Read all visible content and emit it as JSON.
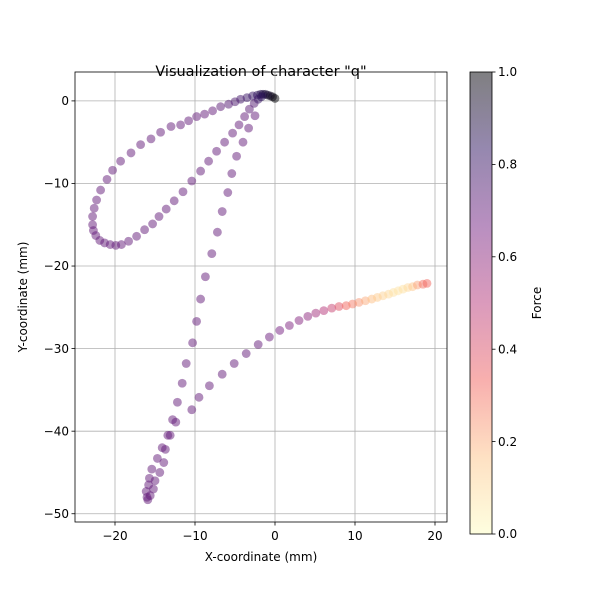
{
  "chart_data": {
    "type": "scatter",
    "title": "Visualization of character \"q\"",
    "xlabel": "X-coordinate (mm)",
    "ylabel": "Y-coordinate (mm)",
    "xlim": [
      -25,
      21.5
    ],
    "ylim": [
      -51,
      3.5
    ],
    "x_ticks": [
      -20,
      -10,
      0,
      10,
      20
    ],
    "y_ticks": [
      0,
      -10,
      -20,
      -30,
      -40,
      -50
    ],
    "x_tick_labels": [
      "−20",
      "−10",
      "0",
      "10",
      "20"
    ],
    "y_tick_labels": [
      "0",
      "−10",
      "−20",
      "−30",
      "−40",
      "−50"
    ],
    "grid": true,
    "marker_alpha": 0.5,
    "colormap": "magma_r",
    "colorbar": {
      "label": "Force",
      "range": [
        0,
        1
      ],
      "ticks": [
        0.0,
        0.2,
        0.4,
        0.6,
        0.8,
        1.0
      ],
      "tick_labels": [
        "0.0",
        "0.2",
        "0.4",
        "0.6",
        "0.8",
        "1.0"
      ],
      "colors": [
        "#fcfdbf",
        "#fec287",
        "#f1605d",
        "#b63679",
        "#721f81",
        "#2c115f",
        "#000004"
      ]
    },
    "points": [
      [
        0.0,
        0.3,
        1.0
      ],
      [
        -0.3,
        0.5,
        0.98
      ],
      [
        -0.6,
        0.6,
        0.96
      ],
      [
        -0.9,
        0.7,
        0.94
      ],
      [
        -1.2,
        0.8,
        0.92
      ],
      [
        -1.5,
        0.8,
        0.9
      ],
      [
        -1.8,
        0.8,
        0.88
      ],
      [
        -2.2,
        0.7,
        0.85
      ],
      [
        -2.8,
        0.6,
        0.82
      ],
      [
        -3.5,
        0.4,
        0.8
      ],
      [
        -4.3,
        0.2,
        0.78
      ],
      [
        -5.0,
        -0.1,
        0.76
      ],
      [
        -5.8,
        -0.4,
        0.74
      ],
      [
        -6.8,
        -0.7,
        0.72
      ],
      [
        -7.8,
        -1.2,
        0.7
      ],
      [
        -8.8,
        -1.6,
        0.7
      ],
      [
        -9.8,
        -1.9,
        0.7
      ],
      [
        -10.8,
        -2.4,
        0.7
      ],
      [
        -11.8,
        -2.9,
        0.7
      ],
      [
        -13.0,
        -3.1,
        0.7
      ],
      [
        -14.3,
        -3.8,
        0.7
      ],
      [
        -15.5,
        -4.6,
        0.7
      ],
      [
        -16.8,
        -5.3,
        0.7
      ],
      [
        -18.0,
        -6.3,
        0.7
      ],
      [
        -19.3,
        -7.3,
        0.7
      ],
      [
        -20.3,
        -8.4,
        0.7
      ],
      [
        -21.0,
        -9.5,
        0.7
      ],
      [
        -21.8,
        -10.8,
        0.7
      ],
      [
        -22.3,
        -12.0,
        0.7
      ],
      [
        -22.6,
        -13.0,
        0.7
      ],
      [
        -22.8,
        -14.0,
        0.7
      ],
      [
        -22.8,
        -15.0,
        0.7
      ],
      [
        -22.7,
        -15.7,
        0.7
      ],
      [
        -22.4,
        -16.3,
        0.7
      ],
      [
        -21.9,
        -16.9,
        0.7
      ],
      [
        -21.3,
        -17.2,
        0.7
      ],
      [
        -20.6,
        -17.4,
        0.7
      ],
      [
        -19.9,
        -17.5,
        0.7
      ],
      [
        -19.2,
        -17.4,
        0.7
      ],
      [
        -18.3,
        -17.0,
        0.7
      ],
      [
        -17.3,
        -16.4,
        0.7
      ],
      [
        -16.3,
        -15.6,
        0.7
      ],
      [
        -15.3,
        -14.9,
        0.7
      ],
      [
        -14.5,
        -14.0,
        0.7
      ],
      [
        -13.6,
        -13.1,
        0.7
      ],
      [
        -12.6,
        -12.1,
        0.7
      ],
      [
        -11.5,
        -11.0,
        0.7
      ],
      [
        -10.4,
        -9.7,
        0.7
      ],
      [
        -9.3,
        -8.5,
        0.7
      ],
      [
        -8.3,
        -7.3,
        0.7
      ],
      [
        -7.3,
        -6.1,
        0.7
      ],
      [
        -6.3,
        -5.0,
        0.7
      ],
      [
        -5.3,
        -3.9,
        0.7
      ],
      [
        -4.5,
        -2.9,
        0.7
      ],
      [
        -3.8,
        -1.9,
        0.7
      ],
      [
        -3.2,
        -1.0,
        0.72
      ],
      [
        -2.6,
        -0.3,
        0.74
      ],
      [
        -2.1,
        0.2,
        0.8
      ],
      [
        -1.7,
        0.5,
        0.85
      ],
      [
        -2.5,
        -1.8,
        0.7
      ],
      [
        -3.3,
        -3.3,
        0.7
      ],
      [
        -4.0,
        -5.0,
        0.7
      ],
      [
        -4.8,
        -6.7,
        0.7
      ],
      [
        -5.4,
        -8.8,
        0.7
      ],
      [
        -5.9,
        -11.1,
        0.7
      ],
      [
        -6.6,
        -13.4,
        0.7
      ],
      [
        -7.2,
        -15.9,
        0.7
      ],
      [
        -7.9,
        -18.5,
        0.7
      ],
      [
        -8.7,
        -21.3,
        0.7
      ],
      [
        -9.3,
        -24.0,
        0.7
      ],
      [
        -9.8,
        -26.7,
        0.7
      ],
      [
        -10.3,
        -29.3,
        0.7
      ],
      [
        -11.1,
        -31.8,
        0.7
      ],
      [
        -11.6,
        -34.2,
        0.7
      ],
      [
        -12.2,
        -36.5,
        0.7
      ],
      [
        -12.4,
        -38.9,
        0.7
      ],
      [
        -12.8,
        -38.6,
        0.7
      ],
      [
        -13.1,
        -40.5,
        0.7
      ],
      [
        -13.4,
        -40.5,
        0.7
      ],
      [
        -13.7,
        -42.2,
        0.7
      ],
      [
        -14.1,
        -42.0,
        0.7
      ],
      [
        -13.9,
        -43.8,
        0.7
      ],
      [
        -14.4,
        -45.0,
        0.7
      ],
      [
        -14.7,
        -43.3,
        0.7
      ],
      [
        -15.0,
        -46.0,
        0.7
      ],
      [
        -15.4,
        -44.6,
        0.7
      ],
      [
        -15.2,
        -47.0,
        0.7
      ],
      [
        -15.7,
        -45.7,
        0.7
      ],
      [
        -15.6,
        -47.8,
        0.7
      ],
      [
        -15.9,
        -48.3,
        0.7
      ],
      [
        -16.0,
        -48.0,
        0.7
      ],
      [
        -16.1,
        -47.3,
        0.7
      ],
      [
        -15.8,
        -46.5,
        0.7
      ],
      [
        -10.4,
        -37.4,
        0.7
      ],
      [
        -9.5,
        -35.9,
        0.7
      ],
      [
        -8.2,
        -34.5,
        0.7
      ],
      [
        -6.6,
        -33.1,
        0.7
      ],
      [
        -5.1,
        -31.8,
        0.7
      ],
      [
        -3.6,
        -30.6,
        0.7
      ],
      [
        -2.1,
        -29.5,
        0.7
      ],
      [
        -0.7,
        -28.6,
        0.68
      ],
      [
        0.6,
        -27.8,
        0.66
      ],
      [
        1.8,
        -27.2,
        0.64
      ],
      [
        3.0,
        -26.6,
        0.62
      ],
      [
        4.1,
        -26.1,
        0.6
      ],
      [
        5.1,
        -25.7,
        0.55
      ],
      [
        6.1,
        -25.4,
        0.5
      ],
      [
        7.1,
        -25.1,
        0.45
      ],
      [
        8.0,
        -24.9,
        0.38
      ],
      [
        8.9,
        -24.8,
        0.32
      ],
      [
        9.7,
        -24.6,
        0.28
      ],
      [
        10.5,
        -24.4,
        0.24
      ],
      [
        11.3,
        -24.2,
        0.2
      ],
      [
        12.1,
        -24.0,
        0.17
      ],
      [
        12.8,
        -23.8,
        0.14
      ],
      [
        13.5,
        -23.6,
        0.12
      ],
      [
        14.2,
        -23.4,
        0.1
      ],
      [
        14.8,
        -23.2,
        0.08
      ],
      [
        15.4,
        -23.0,
        0.07
      ],
      [
        16.0,
        -22.8,
        0.08
      ],
      [
        16.6,
        -22.6,
        0.1
      ],
      [
        17.2,
        -22.5,
        0.15
      ],
      [
        17.8,
        -22.3,
        0.22
      ],
      [
        18.5,
        -22.2,
        0.3
      ],
      [
        19.0,
        -22.1,
        0.32
      ]
    ]
  }
}
